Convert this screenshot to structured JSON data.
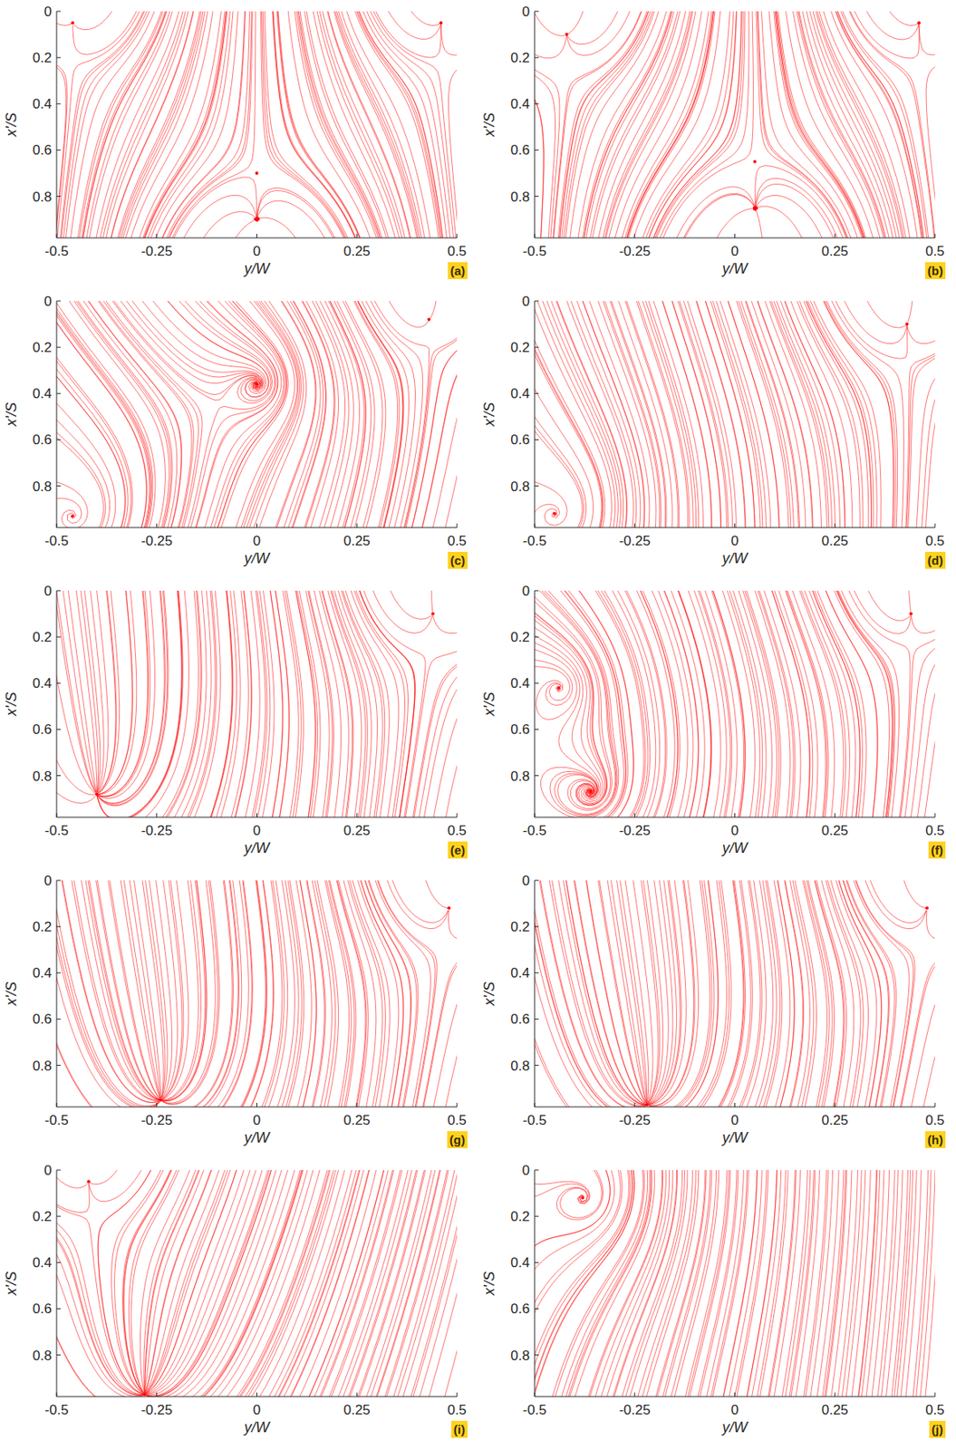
{
  "chart_data": [
    {
      "type": "streamline",
      "panel": "(a)",
      "x_label": "y/W",
      "y_label": "x'/S",
      "color": "#ff0000",
      "xlim": [
        -0.5,
        0.5
      ],
      "ylim": [
        0.98,
        0
      ],
      "xticks": [
        -0.5,
        -0.25,
        0,
        0.25,
        0.5
      ],
      "yticks": [
        0,
        0.2,
        0.4,
        0.6,
        0.8
      ],
      "critical_points": [
        {
          "kind": "node",
          "x": -0.46,
          "y": 0.05
        },
        {
          "kind": "node",
          "x": 0.46,
          "y": 0.05
        },
        {
          "kind": "saddle",
          "x": 0,
          "y": 0.7
        }
      ]
    },
    {
      "type": "streamline",
      "panel": "(b)",
      "x_label": "y/W",
      "y_label": "x'/S",
      "color": "#ff0000",
      "xlim": [
        -0.5,
        0.5
      ],
      "ylim": [
        0.98,
        0
      ],
      "xticks": [
        -0.5,
        -0.25,
        0,
        0.25,
        0.5
      ],
      "yticks": [
        0,
        0.2,
        0.4,
        0.6,
        0.8
      ],
      "critical_points": [
        {
          "kind": "node",
          "x": -0.42,
          "y": 0.1
        },
        {
          "kind": "node",
          "x": 0.46,
          "y": 0.05
        },
        {
          "kind": "saddle",
          "x": 0.05,
          "y": 0.65
        }
      ]
    },
    {
      "type": "streamline",
      "panel": "(c)",
      "x_label": "y/W",
      "y_label": "x'/S",
      "color": "#ff0000",
      "xlim": [
        -0.5,
        0.5
      ],
      "ylim": [
        0.98,
        0
      ],
      "xticks": [
        -0.5,
        -0.25,
        0,
        0.25,
        0.5
      ],
      "yticks": [
        0,
        0.2,
        0.4,
        0.6,
        0.8
      ],
      "critical_points": [
        {
          "kind": "focus",
          "x": 0,
          "y": 0.36
        },
        {
          "kind": "node",
          "x": 0.43,
          "y": 0.08
        },
        {
          "kind": "focus",
          "x": -0.46,
          "y": 0.93
        }
      ]
    },
    {
      "type": "streamline",
      "panel": "(d)",
      "x_label": "y/W",
      "y_label": "x'/S",
      "color": "#ff0000",
      "xlim": [
        -0.5,
        0.5
      ],
      "ylim": [
        0.98,
        0
      ],
      "xticks": [
        -0.5,
        -0.25,
        0,
        0.25,
        0.5
      ],
      "yticks": [
        0,
        0.2,
        0.4,
        0.6,
        0.8
      ],
      "critical_points": [
        {
          "kind": "node",
          "x": 0.43,
          "y": 0.1
        },
        {
          "kind": "focus",
          "x": -0.45,
          "y": 0.92
        }
      ]
    },
    {
      "type": "streamline",
      "panel": "(e)",
      "x_label": "y/W",
      "y_label": "x'/S",
      "color": "#ff0000",
      "xlim": [
        -0.5,
        0.5
      ],
      "ylim": [
        0.98,
        0
      ],
      "xticks": [
        -0.5,
        -0.25,
        0,
        0.25,
        0.5
      ],
      "yticks": [
        0,
        0.2,
        0.4,
        0.6,
        0.8
      ],
      "critical_points": [
        {
          "kind": "node",
          "x": 0.44,
          "y": 0.1
        },
        {
          "kind": "node",
          "x": -0.4,
          "y": 0.88
        }
      ]
    },
    {
      "type": "streamline",
      "panel": "(f)",
      "x_label": "y/W",
      "y_label": "x'/S",
      "color": "#ff0000",
      "xlim": [
        -0.5,
        0.5
      ],
      "ylim": [
        0.98,
        0
      ],
      "xticks": [
        -0.5,
        -0.25,
        0,
        0.25,
        0.5
      ],
      "yticks": [
        0,
        0.2,
        0.4,
        0.6,
        0.8
      ],
      "critical_points": [
        {
          "kind": "node",
          "x": 0.44,
          "y": 0.1
        },
        {
          "kind": "focus",
          "x": -0.36,
          "y": 0.87
        },
        {
          "kind": "focus",
          "x": -0.44,
          "y": 0.42
        }
      ]
    },
    {
      "type": "streamline",
      "panel": "(g)",
      "x_label": "y/W",
      "y_label": "x'/S",
      "color": "#ff0000",
      "xlim": [
        -0.5,
        0.5
      ],
      "ylim": [
        0.98,
        0
      ],
      "xticks": [
        -0.5,
        -0.25,
        0,
        0.25,
        0.5
      ],
      "yticks": [
        0,
        0.2,
        0.4,
        0.6,
        0.8
      ],
      "critical_points": [
        {
          "kind": "node",
          "x": -0.24,
          "y": 0.95
        },
        {
          "kind": "node",
          "x": 0.48,
          "y": 0.12
        }
      ]
    },
    {
      "type": "streamline",
      "panel": "(h)",
      "x_label": "y/W",
      "y_label": "x'/S",
      "color": "#ff0000",
      "xlim": [
        -0.5,
        0.5
      ],
      "ylim": [
        0.98,
        0
      ],
      "xticks": [
        -0.5,
        -0.25,
        0,
        0.25,
        0.5
      ],
      "yticks": [
        0,
        0.2,
        0.4,
        0.6,
        0.8
      ],
      "critical_points": [
        {
          "kind": "node",
          "x": -0.22,
          "y": 0.97
        },
        {
          "kind": "node",
          "x": 0.48,
          "y": 0.12
        }
      ]
    },
    {
      "type": "streamline",
      "panel": "(i)",
      "x_label": "y/W",
      "y_label": "x'/S",
      "color": "#ff0000",
      "xlim": [
        -0.5,
        0.5
      ],
      "ylim": [
        0.98,
        0
      ],
      "xticks": [
        -0.5,
        -0.25,
        0,
        0.25,
        0.5
      ],
      "yticks": [
        0,
        0.2,
        0.4,
        0.6,
        0.8
      ],
      "critical_points": [
        {
          "kind": "node",
          "x": -0.28,
          "y": 0.97
        },
        {
          "kind": "node",
          "x": -0.42,
          "y": 0.05
        }
      ]
    },
    {
      "type": "streamline",
      "panel": "(j)",
      "x_label": "y/W",
      "y_label": "x'/S",
      "color": "#ff0000",
      "xlim": [
        -0.5,
        0.5
      ],
      "ylim": [
        0.98,
        0
      ],
      "xticks": [
        -0.5,
        -0.25,
        0,
        0.25,
        0.5
      ],
      "yticks": [
        0,
        0.2,
        0.4,
        0.6,
        0.8
      ],
      "critical_points": [
        {
          "kind": "focus",
          "x": -0.38,
          "y": 0.12
        }
      ]
    }
  ]
}
